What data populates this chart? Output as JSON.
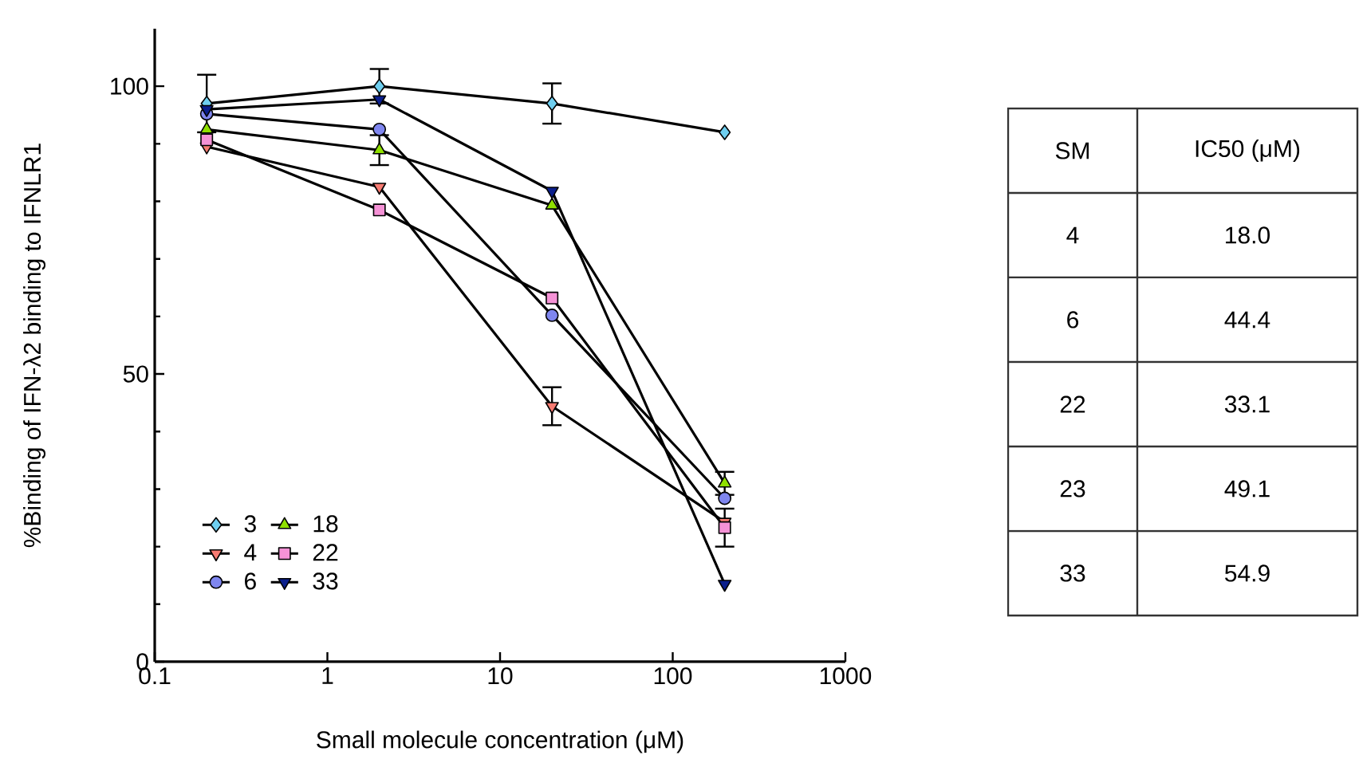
{
  "chart_data": [
    {
      "type": "line",
      "xlabel": "Small molecule concentration (μM)",
      "ylabel": "%Binding of IFN-λ2 binding to IFNLR1",
      "x": [
        0.2,
        2,
        20,
        200
      ],
      "xlim": [
        0.1,
        1000
      ],
      "xticks": [
        0.1,
        1,
        10,
        100,
        1000
      ],
      "ylim": [
        0,
        110
      ],
      "yticks": [
        0,
        50,
        100
      ],
      "log": "x",
      "legend": "bottom left",
      "line_style": "solid",
      "grid": false,
      "series": [
        {
          "name": "3",
          "color": "#6fcff0",
          "marker": "diamond",
          "values": [
            97,
            100,
            97,
            92
          ],
          "errors": [
            5,
            3,
            3.5,
            null
          ]
        },
        {
          "name": "4",
          "color": "#f77b72",
          "marker": "triangle-down",
          "values": [
            89.5,
            82.5,
            44.4,
            24.3
          ],
          "errors": [
            null,
            null,
            3.3,
            null
          ]
        },
        {
          "name": "6",
          "color": "#7f86ef",
          "marker": "circle",
          "values": [
            95.2,
            92.5,
            60.2,
            28.4
          ],
          "errors": [
            null,
            null,
            null,
            null
          ]
        },
        {
          "name": "18",
          "color": "#8fe000",
          "marker": "triangle",
          "values": [
            92.5,
            88.9,
            79.3,
            31
          ],
          "errors": [
            null,
            2.6,
            null,
            2
          ]
        },
        {
          "name": "22",
          "color": "#f592d6",
          "marker": "square",
          "values": [
            90.7,
            78.5,
            63.2,
            23.3
          ],
          "errors": [
            null,
            null,
            null,
            3.3
          ]
        },
        {
          "name": "33",
          "color": "#0b1f8c",
          "marker": "triangle-down",
          "values": [
            96,
            97.7,
            81.8,
            13.5
          ]
        }
      ]
    },
    {
      "type": "other",
      "xlabel": "SM",
      "ylabel": "IC50 (μM)",
      "categories": [
        "4",
        "6",
        "22",
        "23",
        "33"
      ],
      "value_labels": [
        "18.0",
        "44.4",
        "33.1",
        "49.1",
        "54.9"
      ]
    }
  ]
}
